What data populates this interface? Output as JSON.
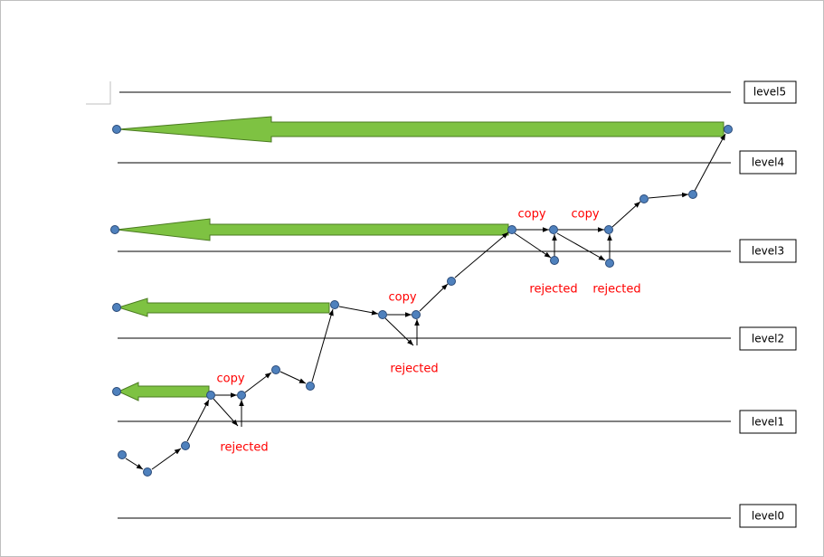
{
  "levels": [
    "level0",
    "level1",
    "level2",
    "level3",
    "level4",
    "level5"
  ],
  "copy_labels": [
    "copy",
    "copy",
    "copy",
    "copy"
  ],
  "rejected_labels": [
    "rejected",
    "rejected",
    "rejected",
    "rejected"
  ]
}
